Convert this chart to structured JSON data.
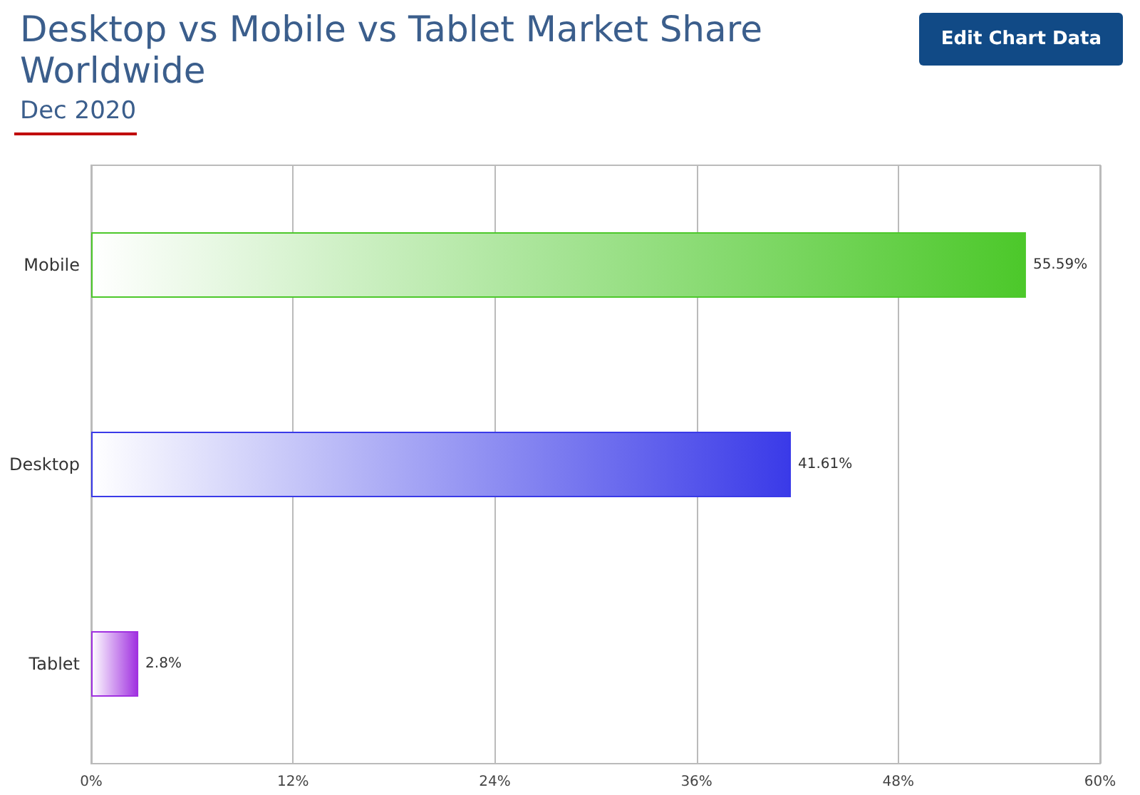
{
  "chart_data": {
    "type": "bar",
    "orientation": "horizontal",
    "title": "Desktop vs Mobile vs Tablet Market Share Worldwide",
    "subtitle": "Dec 2020",
    "annotations": [
      "Edit Chart Data"
    ],
    "categories": [
      "Mobile",
      "Desktop",
      "Tablet"
    ],
    "values": [
      55.59,
      41.61,
      2.8
    ],
    "colors": [
      "#4cc82a",
      "#3a3ae8",
      "#a030e0"
    ],
    "value_labels": [
      "55.59%",
      "41.61%",
      "2.8%"
    ],
    "xlim": [
      0,
      60
    ],
    "xticks": [
      {
        "value": 0,
        "label": "0%"
      },
      {
        "value": 12,
        "label": "12%"
      },
      {
        "value": 24,
        "label": "24%"
      },
      {
        "value": 36,
        "label": "36%"
      },
      {
        "value": 48,
        "label": "48%"
      },
      {
        "value": 60,
        "label": "60%"
      }
    ],
    "grid": "x"
  }
}
